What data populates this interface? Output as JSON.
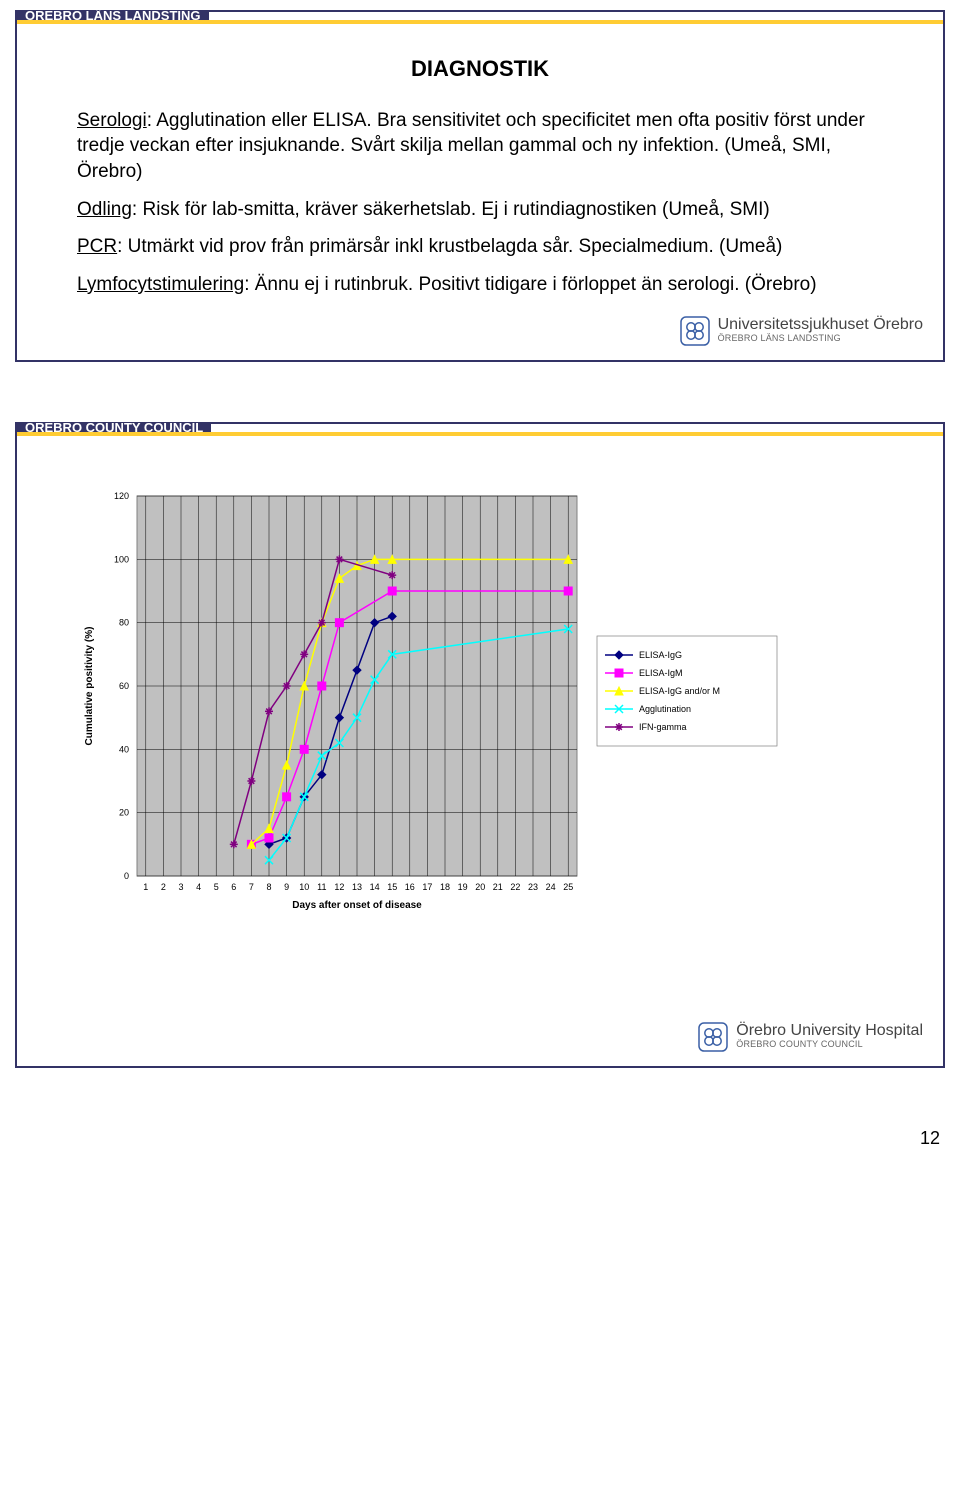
{
  "page_number": "12",
  "slide1": {
    "header": "ÖREBRO LÄNS LANDSTING",
    "title": "DIAGNOSTIK",
    "p1_key": "Serologi",
    "p1_rest": ": Agglutination eller ELISA. Bra sensitivitet och specificitet men ofta positiv först under tredje veckan efter insjuknande. Svårt skilja mellan gammal och ny infektion. (Umeå, SMI, Örebro)",
    "p2_key": "Odling",
    "p2_rest": ": Risk för lab-smitta, kräver säkerhetslab. Ej i rutindiagnostiken (Umeå, SMI)",
    "p3_key": "PCR",
    "p3_rest": ": Utmärkt vid prov från primärsår inkl krustbelagda sår. Specialmedium. (Umeå)",
    "p4_key": "Lymfocytstimulering",
    "p4_rest": ": Ännu ej i rutinbruk. Positivt tidigare i förloppet än serologi. (Örebro)",
    "footer_l1": "Universitetssjukhuset Örebro",
    "footer_l2": "ÖREBRO LÄNS LANDSTING"
  },
  "slide2": {
    "header": "ÖREBRO COUNTY COUNCIL",
    "footer_l1": "Örebro University Hospital",
    "footer_l2": "ÖREBRO COUNTY COUNCIL",
    "chart": {
      "type": "line",
      "plot_bg": "#c0c0c0",
      "outer_bg": "#ffffff",
      "grid_color": "#000000",
      "border_color": "#808080",
      "ylabel": "Cumulative positivity (%)",
      "xlabel": "Days after onset of disease",
      "label_fontsize": 10,
      "tick_fontsize": 9,
      "ylim": [
        0,
        120
      ],
      "ytick_step": 20,
      "x_categories": [
        "1",
        "2",
        "3",
        "4",
        "5",
        "6",
        "7",
        "8",
        "9",
        "10",
        "11",
        "12",
        "13",
        "14",
        "15",
        "16",
        "17",
        "18",
        "19",
        "20",
        "21",
        "22",
        "23",
        "24",
        "25"
      ],
      "legend_fontsize": 9,
      "legend_bg": "#ffffff",
      "marker_size": 4,
      "line_width": 1.5,
      "series": [
        {
          "name": "ELISA-IgG",
          "color": "#000080",
          "marker": "diamond",
          "data": [
            null,
            null,
            null,
            null,
            null,
            null,
            null,
            10,
            12,
            25,
            32,
            50,
            65,
            80,
            82,
            null,
            null,
            null,
            null,
            null,
            null,
            null,
            null,
            null,
            null
          ]
        },
        {
          "name": "ELISA-IgM",
          "color": "#ff00ff",
          "marker": "square",
          "data": [
            null,
            null,
            null,
            null,
            null,
            null,
            10,
            12,
            25,
            40,
            60,
            80,
            null,
            null,
            90,
            null,
            null,
            null,
            null,
            null,
            null,
            null,
            null,
            null,
            90
          ]
        },
        {
          "name": "ELISA-IgG and/or M",
          "color": "#ffff00",
          "marker": "triangle",
          "data": [
            null,
            null,
            null,
            null,
            null,
            null,
            10,
            15,
            35,
            60,
            80,
            94,
            98,
            100,
            100,
            null,
            null,
            null,
            null,
            null,
            null,
            null,
            null,
            null,
            100
          ]
        },
        {
          "name": "Agglutination",
          "color": "#00ffff",
          "marker": "x",
          "data": [
            null,
            null,
            null,
            null,
            null,
            null,
            null,
            5,
            12,
            25,
            38,
            42,
            50,
            62,
            70,
            null,
            null,
            null,
            null,
            null,
            null,
            null,
            null,
            null,
            78
          ]
        },
        {
          "name": "IFN-gamma",
          "color": "#800080",
          "marker": "asterisk",
          "data": [
            null,
            null,
            null,
            null,
            null,
            10,
            30,
            52,
            60,
            70,
            80,
            100,
            null,
            null,
            95,
            null,
            null,
            null,
            null,
            null,
            null,
            null,
            null,
            null,
            null
          ]
        }
      ]
    }
  }
}
